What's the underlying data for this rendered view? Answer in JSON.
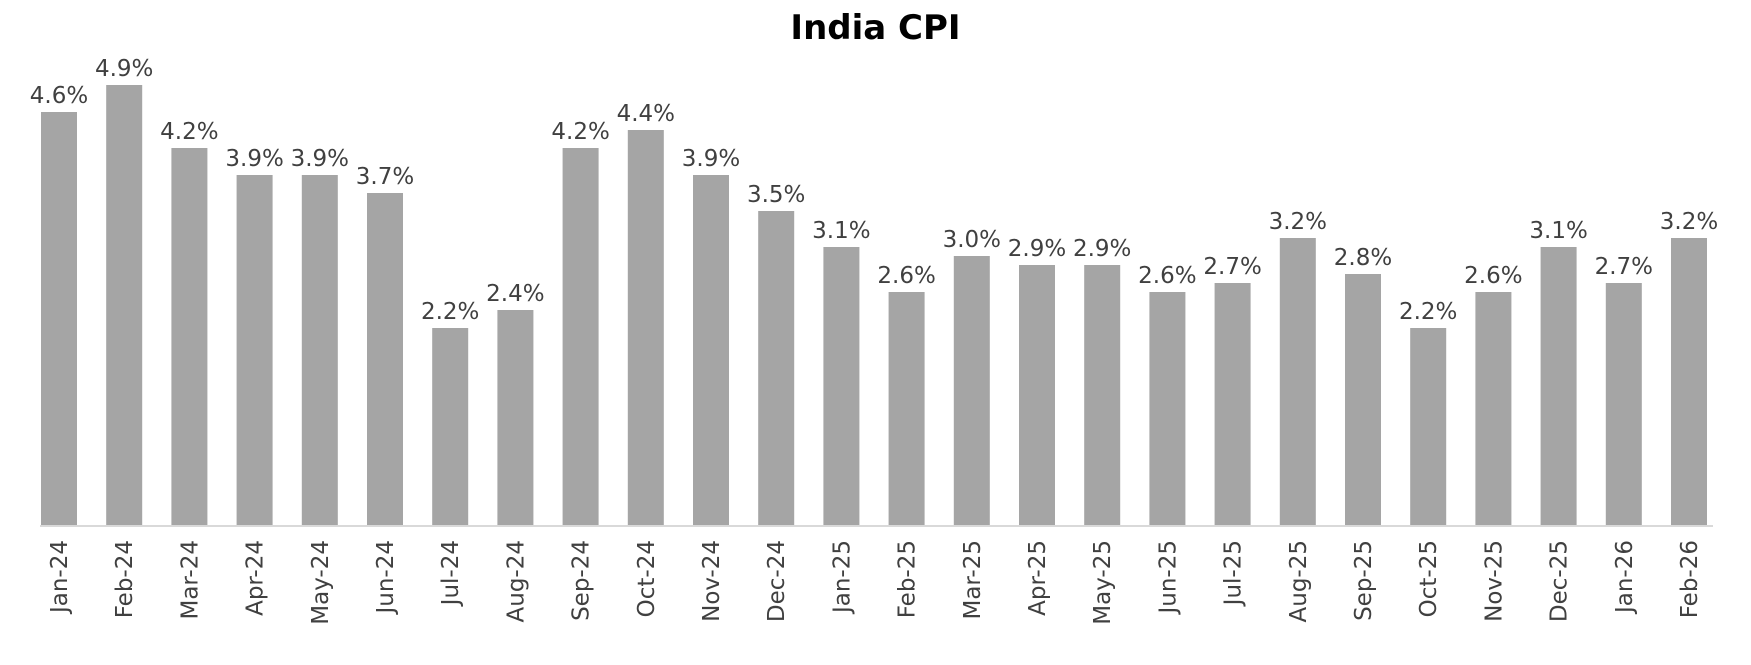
{
  "chart_data": {
    "type": "bar",
    "title": "India CPI",
    "xlabel": "",
    "ylabel": "",
    "categories": [
      "Jan-24",
      "Feb-24",
      "Mar-24",
      "Apr-24",
      "May-24",
      "Jun-24",
      "Jul-24",
      "Aug-24",
      "Sep-24",
      "Oct-24",
      "Nov-24",
      "Dec-24",
      "Jan-25",
      "Feb-25",
      "Mar-25",
      "Apr-25",
      "May-25",
      "Jun-25",
      "Jul-25",
      "Aug-25",
      "Sep-25",
      "Oct-25",
      "Nov-25",
      "Dec-25",
      "Jan-26",
      "Feb-26"
    ],
    "values": [
      4.6,
      4.9,
      4.2,
      3.9,
      3.9,
      3.7,
      2.2,
      2.4,
      4.2,
      4.4,
      3.9,
      3.5,
      3.1,
      2.6,
      3.0,
      2.9,
      2.9,
      2.6,
      2.7,
      3.2,
      2.8,
      2.2,
      2.6,
      3.1,
      2.7,
      3.2
    ],
    "labels": [
      "4.6%",
      "4.9%",
      "4.2%",
      "3.9%",
      "3.9%",
      "3.7%",
      "2.2%",
      "2.4%",
      "4.2%",
      "4.4%",
      "3.9%",
      "3.5%",
      "3.1%",
      "2.6%",
      "3.0%",
      "2.9%",
      "2.9%",
      "2.6%",
      "2.7%",
      "3.2%",
      "2.8%",
      "2.2%",
      "2.6%",
      "3.1%",
      "2.7%",
      "3.2%"
    ],
    "ylim": [
      0,
      5.0
    ],
    "grid": false,
    "legend": "none",
    "colors": {
      "bar": "#a5a5a5",
      "axis": "#d9d9d9",
      "text": "#404040",
      "title": "#000000"
    }
  }
}
